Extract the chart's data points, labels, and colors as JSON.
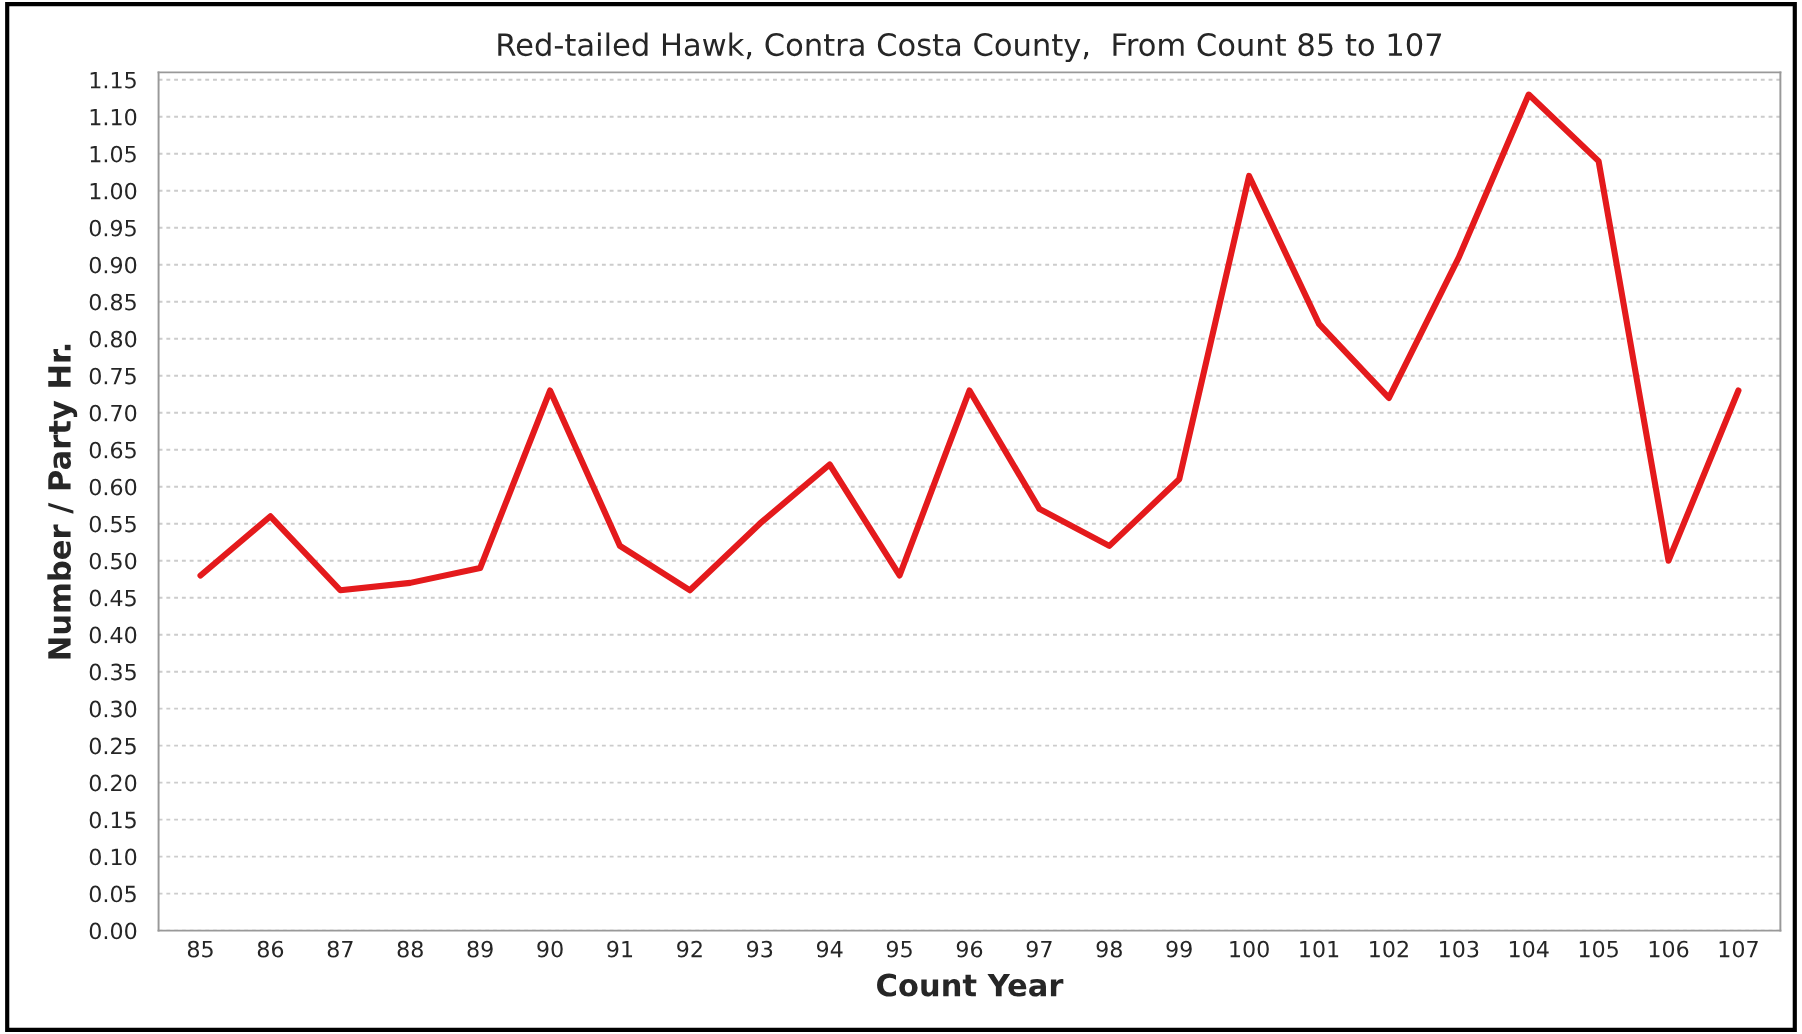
{
  "chart_data": {
    "type": "line",
    "title": "Red-tailed Hawk, Contra Costa County,  From Count 85 to 107",
    "xlabel": "Count Year",
    "ylabel": "Number / Party Hr.",
    "categories": [
      "85",
      "86",
      "87",
      "88",
      "89",
      "90",
      "91",
      "92",
      "93",
      "94",
      "95",
      "96",
      "97",
      "98",
      "99",
      "100",
      "101",
      "102",
      "103",
      "104",
      "105",
      "106",
      "107"
    ],
    "series": [
      {
        "color": "#e41a1c",
        "values": [
          0.48,
          0.56,
          0.46,
          0.47,
          0.49,
          0.73,
          0.52,
          0.46,
          0.55,
          0.63,
          0.48,
          0.73,
          0.57,
          0.52,
          0.61,
          1.02,
          0.82,
          0.72,
          0.91,
          1.13,
          1.04,
          0.5,
          0.73
        ]
      }
    ],
    "ylim": [
      0,
      1.16
    ],
    "yticks": [
      {
        "value": 0,
        "label": "0.00"
      },
      {
        "value": 0.05,
        "label": "0.05"
      },
      {
        "value": 0.1,
        "label": "0.10"
      },
      {
        "value": 0.15,
        "label": "0.15"
      },
      {
        "value": 0.2,
        "label": "0.20"
      },
      {
        "value": 0.25,
        "label": "0.25"
      },
      {
        "value": 0.3,
        "label": "0.30"
      },
      {
        "value": 0.35,
        "label": "0.35"
      },
      {
        "value": 0.4,
        "label": "0.40"
      },
      {
        "value": 0.45,
        "label": "0.45"
      },
      {
        "value": 0.5,
        "label": "0.50"
      },
      {
        "value": 0.55,
        "label": "0.55"
      },
      {
        "value": 0.6,
        "label": "0.60"
      },
      {
        "value": 0.65,
        "label": "0.65"
      },
      {
        "value": 0.7,
        "label": "0.70"
      },
      {
        "value": 0.75,
        "label": "0.75"
      },
      {
        "value": 0.8,
        "label": "0.80"
      },
      {
        "value": 0.85,
        "label": "0.85"
      },
      {
        "value": 0.9,
        "label": "0.90"
      },
      {
        "value": 0.95,
        "label": "0.95"
      },
      {
        "value": 1.0,
        "label": "1.00"
      },
      {
        "value": 1.05,
        "label": "1.05"
      },
      {
        "value": 1.1,
        "label": "1.10"
      },
      {
        "value": 1.15,
        "label": "1.15"
      }
    ],
    "grid": "y",
    "legend": false,
    "marker": "none",
    "line_style": "solid"
  }
}
